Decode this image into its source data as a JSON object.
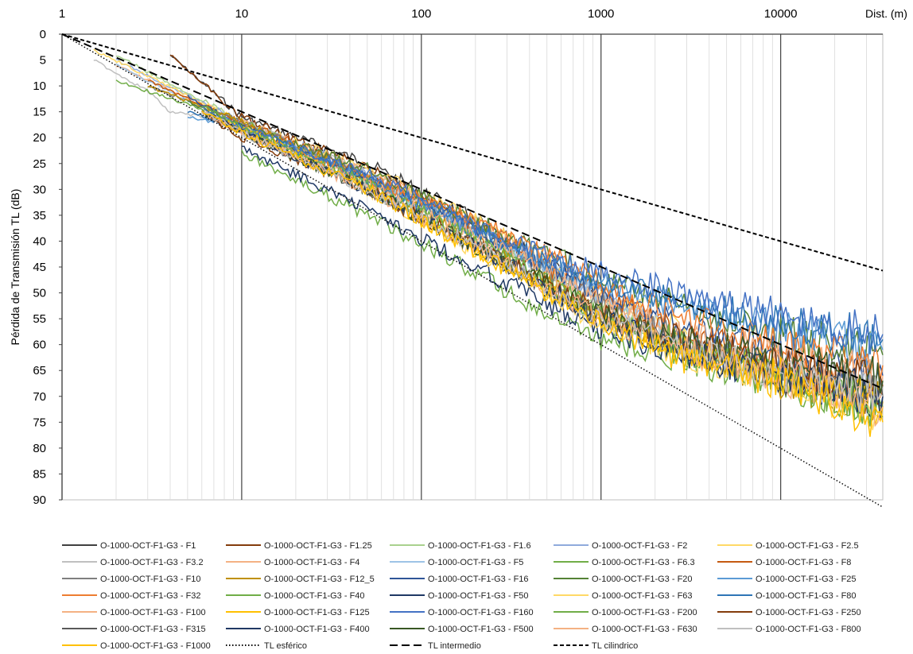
{
  "chart_data": {
    "type": "line",
    "xlabel": "Dist. (m)",
    "ylabel": "Pérdida de Transmisión TL (dB)",
    "x_scale": "log",
    "xlim": [
      1,
      37000
    ],
    "ylim": [
      90,
      0
    ],
    "y_inverted": true,
    "x_ticks": [
      "1",
      "10",
      "100",
      "1000",
      "10000"
    ],
    "y_ticks": [
      "0",
      "5",
      "10",
      "15",
      "20",
      "25",
      "30",
      "35",
      "40",
      "45",
      "50",
      "55",
      "60",
      "65",
      "70",
      "75",
      "80",
      "85",
      "90"
    ],
    "grid": "vertical lines at decades",
    "legend_position": "bottom",
    "series": [
      {
        "name": "O-1000-OCT-F1-G3 - F1",
        "color": "#404040",
        "style": "solid",
        "x": [
          4,
          10,
          50,
          200,
          500,
          1000
        ],
        "y": [
          4,
          16,
          25,
          36,
          45,
          50
        ]
      },
      {
        "name": "O-1000-OCT-F1-G3 - F1.25",
        "color": "#843c0c",
        "style": "solid",
        "x": [
          4,
          10,
          50,
          200,
          500
        ],
        "y": [
          4,
          16,
          26,
          37,
          46
        ]
      },
      {
        "name": "O-1000-OCT-F1-G3 - F1.6",
        "color": "#a9d18e",
        "style": "solid",
        "x": [
          2,
          10,
          50,
          200,
          500,
          1000,
          2000
        ],
        "y": [
          4,
          17,
          28,
          38,
          46,
          52,
          57
        ]
      },
      {
        "name": "O-1000-OCT-F1-G3 - F2",
        "color": "#8faadc",
        "style": "solid",
        "x": [
          2,
          10,
          50,
          200,
          500,
          1000,
          2000
        ],
        "y": [
          5,
          17,
          27,
          37,
          45,
          50,
          56
        ]
      },
      {
        "name": "O-1000-OCT-F1-G3 - F2.5",
        "color": "#ffd966",
        "style": "solid",
        "x": [
          1.5,
          10,
          50,
          200,
          500,
          1000,
          3000
        ],
        "y": [
          3,
          17,
          26,
          36,
          44,
          50,
          58
        ]
      },
      {
        "name": "O-1000-OCT-F1-G3 - F3.2",
        "color": "#bfbfbf",
        "style": "solid",
        "x": [
          1.5,
          3,
          4,
          10,
          50,
          200,
          500,
          1000,
          3000
        ],
        "y": [
          5,
          11,
          15,
          17,
          27,
          37,
          45,
          51,
          60
        ]
      },
      {
        "name": "O-1000-OCT-F1-G3 - F4",
        "color": "#f4b183",
        "style": "solid",
        "x": [
          2,
          10,
          50,
          200,
          500,
          1000,
          3000
        ],
        "y": [
          6,
          17,
          27,
          37,
          44,
          50,
          60
        ]
      },
      {
        "name": "O-1000-OCT-F1-G3 - F5",
        "color": "#9dc3e6",
        "style": "solid",
        "x": [
          2,
          10,
          50,
          200,
          500,
          1000,
          3000
        ],
        "y": [
          6,
          18,
          28,
          38,
          45,
          51,
          60
        ]
      },
      {
        "name": "O-1000-OCT-F1-G3 - F6.3",
        "color": "#70ad47",
        "style": "solid",
        "x": [
          2,
          10,
          50,
          200,
          500,
          1000,
          3000,
          10000,
          37000
        ],
        "y": [
          9,
          17,
          28,
          40,
          48,
          55,
          62,
          67,
          72
        ]
      },
      {
        "name": "O-1000-OCT-F1-G3 - F8",
        "color": "#c55a11",
        "style": "solid",
        "x": [
          3,
          10,
          50,
          200,
          500,
          1000,
          3000,
          10000,
          37000
        ],
        "y": [
          9,
          17,
          27,
          37,
          45,
          50,
          58,
          64,
          70
        ]
      },
      {
        "name": "O-1000-OCT-F1-G3 - F10",
        "color": "#7f7f7f",
        "style": "solid",
        "x": [
          3,
          10,
          50,
          200,
          500,
          1000,
          3000,
          10000,
          37000
        ],
        "y": [
          10,
          17,
          28,
          38,
          46,
          52,
          60,
          65,
          68
        ]
      },
      {
        "name": "O-1000-OCT-F1-G3 - F12_5",
        "color": "#bf9000",
        "style": "solid",
        "x": [
          3,
          10,
          50,
          200,
          500,
          1000,
          3000,
          10000,
          37000
        ],
        "y": [
          10,
          17,
          28,
          40,
          48,
          54,
          61,
          67,
          71
        ]
      },
      {
        "name": "O-1000-OCT-F1-G3 - F16",
        "color": "#2f5597",
        "style": "solid",
        "x": [
          5,
          10,
          50,
          200,
          500,
          1000,
          3000,
          10000,
          37000
        ],
        "y": [
          12,
          18,
          28,
          38,
          45,
          50,
          57,
          62,
          66
        ]
      },
      {
        "name": "O-1000-OCT-F1-G3 - F20",
        "color": "#548235",
        "style": "solid",
        "x": [
          5,
          10,
          50,
          200,
          500,
          1000,
          3000,
          10000,
          37000
        ],
        "y": [
          13,
          18,
          26,
          36,
          42,
          47,
          53,
          58,
          62
        ]
      },
      {
        "name": "O-1000-OCT-F1-G3 - F25",
        "color": "#5b9bd5",
        "style": "solid",
        "x": [
          5,
          10,
          50,
          200,
          500,
          1000,
          3000,
          10000,
          37000
        ],
        "y": [
          16,
          18,
          28,
          38,
          44,
          48,
          53,
          57,
          61
        ]
      },
      {
        "name": "O-1000-OCT-F1-G3 - F32",
        "color": "#ed7d31",
        "style": "solid",
        "x": [
          6,
          10,
          50,
          200,
          500,
          1000,
          3000,
          10000,
          37000
        ],
        "y": [
          15,
          19,
          28,
          36,
          42,
          48,
          55,
          60,
          64
        ]
      },
      {
        "name": "O-1000-OCT-F1-G3 - F40",
        "color": "#70ad47",
        "style": "solid",
        "x": [
          10,
          50,
          200,
          500,
          1000,
          3000,
          10000,
          37000
        ],
        "y": [
          23,
          35,
          46,
          54,
          59,
          63,
          67,
          72
        ]
      },
      {
        "name": "O-1000-OCT-F1-G3 - F50",
        "color": "#1f3864",
        "style": "solid",
        "x": [
          10,
          50,
          200,
          500,
          1000,
          3000,
          10000,
          37000
        ],
        "y": [
          22,
          34,
          45,
          52,
          57,
          62,
          66,
          70
        ]
      },
      {
        "name": "O-1000-OCT-F1-G3 - F63",
        "color": "#ffd966",
        "style": "solid",
        "x": [
          6,
          10,
          50,
          200,
          500,
          1000,
          3000,
          10000,
          37000
        ],
        "y": [
          15,
          18,
          30,
          42,
          50,
          56,
          62,
          66,
          74
        ]
      },
      {
        "name": "O-1000-OCT-F1-G3 - F80",
        "color": "#2e75b6",
        "style": "solid",
        "x": [
          5,
          10,
          50,
          200,
          500,
          1000,
          3000,
          10000,
          37000
        ],
        "y": [
          15,
          18,
          28,
          38,
          44,
          48,
          52,
          56,
          59
        ]
      },
      {
        "name": "O-1000-OCT-F1-G3 - F100",
        "color": "#f4b183",
        "style": "solid",
        "x": [
          6,
          10,
          50,
          200,
          500,
          1000,
          3000,
          10000,
          37000
        ],
        "y": [
          15,
          19,
          29,
          39,
          46,
          52,
          58,
          62,
          66
        ]
      },
      {
        "name": "O-1000-OCT-F1-G3 - F125",
        "color": "#ffc000",
        "style": "solid",
        "x": [
          6,
          10,
          50,
          200,
          500,
          1000,
          3000,
          10000,
          37000
        ],
        "y": [
          15,
          18,
          30,
          42,
          50,
          55,
          61,
          66,
          72
        ]
      },
      {
        "name": "O-1000-OCT-F1-G3 - F160",
        "color": "#4472c4",
        "style": "solid",
        "x": [
          6,
          10,
          50,
          200,
          500,
          1000,
          3000,
          10000,
          37000
        ],
        "y": [
          14,
          18,
          27,
          37,
          43,
          46,
          50,
          54,
          58
        ]
      },
      {
        "name": "O-1000-OCT-F1-G3 - F200",
        "color": "#70ad47",
        "style": "solid",
        "x": [
          6,
          10,
          50,
          200,
          500,
          1000,
          3000,
          10000,
          37000
        ],
        "y": [
          14,
          18,
          29,
          40,
          48,
          54,
          60,
          66,
          74
        ]
      },
      {
        "name": "O-1000-OCT-F1-G3 - F250",
        "color": "#843c0c",
        "style": "solid",
        "x": [
          6,
          10,
          50,
          200,
          500,
          1000,
          3000,
          10000,
          37000
        ],
        "y": [
          15,
          20,
          30,
          41,
          48,
          54,
          59,
          64,
          68
        ]
      },
      {
        "name": "O-1000-OCT-F1-G3 - F315",
        "color": "#595959",
        "style": "solid",
        "x": [
          6,
          10,
          50,
          200,
          500,
          1000,
          3000,
          10000,
          37000
        ],
        "y": [
          15,
          19,
          30,
          41,
          49,
          55,
          61,
          66,
          70
        ]
      },
      {
        "name": "O-1000-OCT-F1-G3 - F400",
        "color": "#203864",
        "style": "solid",
        "x": [
          6,
          10,
          50,
          200,
          500,
          1000,
          3000,
          10000,
          37000
        ],
        "y": [
          15,
          19,
          30,
          41,
          49,
          55,
          62,
          66,
          70
        ]
      },
      {
        "name": "O-1000-OCT-F1-G3 - F500",
        "color": "#385723",
        "style": "solid",
        "x": [
          6,
          10,
          50,
          200,
          500,
          1000,
          3000,
          10000,
          37000
        ],
        "y": [
          15,
          19,
          30,
          41,
          48,
          54,
          59,
          63,
          67
        ]
      },
      {
        "name": "O-1000-OCT-F1-G3 - F630",
        "color": "#f4b183",
        "style": "solid",
        "x": [
          6,
          10,
          50,
          200,
          500,
          1000,
          3000,
          10000,
          37000
        ],
        "y": [
          15,
          19,
          30,
          41,
          49,
          55,
          61,
          66,
          72
        ]
      },
      {
        "name": "O-1000-OCT-F1-G3 - F800",
        "color": "#bfbfbf",
        "style": "solid",
        "x": [
          6,
          10,
          50,
          200,
          500,
          1000,
          3000,
          10000,
          37000
        ],
        "y": [
          15,
          19,
          30,
          41,
          49,
          55,
          61,
          66,
          70
        ]
      },
      {
        "name": "O-1000-OCT-F1-G3 - F1000",
        "color": "#ffc000",
        "style": "solid",
        "x": [
          6,
          10,
          50,
          200,
          500,
          1000,
          3000,
          10000,
          37000
        ],
        "y": [
          15,
          19,
          30,
          42,
          50,
          56,
          63,
          67,
          75
        ]
      },
      {
        "name": "TL esférico",
        "color": "#000000",
        "style": "dotted",
        "x": [
          1,
          37000
        ],
        "y": [
          0,
          91.4
        ]
      },
      {
        "name": "TL intermedio",
        "color": "#000000",
        "style": "dashed",
        "x": [
          1,
          37000
        ],
        "y": [
          0,
          68.5
        ]
      },
      {
        "name": "TL cilindrico",
        "color": "#000000",
        "style": "dashed-short",
        "x": [
          1,
          37000
        ],
        "y": [
          0,
          45.7
        ]
      }
    ]
  }
}
